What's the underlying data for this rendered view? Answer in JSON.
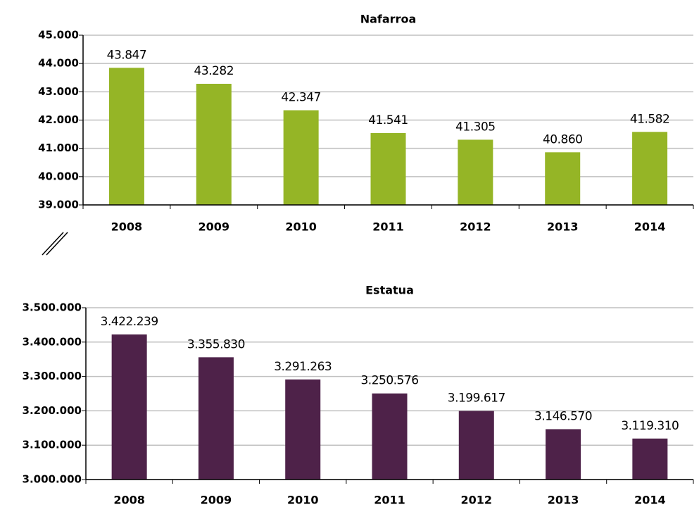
{
  "chart_data": [
    {
      "type": "bar",
      "title": "Nafarroa",
      "categories": [
        "2008",
        "2009",
        "2010",
        "2011",
        "2012",
        "2013",
        "2014"
      ],
      "values": [
        43847,
        43282,
        42347,
        41541,
        41305,
        40860,
        41582
      ],
      "value_labels": [
        "43.847",
        "43.282",
        "42.347",
        "41.541",
        "41.305",
        "40.860",
        "41.582"
      ],
      "color": "#95b526",
      "ylim": [
        39000,
        45000
      ],
      "yticks": [
        {
          "value": 39000,
          "label": "39.000"
        },
        {
          "value": 40000,
          "label": "40.000"
        },
        {
          "value": 41000,
          "label": "41.000"
        },
        {
          "value": 42000,
          "label": "42.000"
        },
        {
          "value": 43000,
          "label": "43.000"
        },
        {
          "value": 44000,
          "label": "44.000"
        },
        {
          "value": 45000,
          "label": "45.000"
        }
      ],
      "grid": true
    },
    {
      "type": "bar",
      "title": "Estatua",
      "categories": [
        "2008",
        "2009",
        "2010",
        "2011",
        "2012",
        "2013",
        "2014"
      ],
      "values": [
        3422239,
        3355830,
        3291263,
        3250576,
        3199617,
        3146570,
        3119310
      ],
      "value_labels": [
        "3.422.239",
        "3.355.830",
        "3.291.263",
        "3.250.576",
        "3.199.617",
        "3.146.570",
        "3.119.310"
      ],
      "color": "#4e2249",
      "ylim": [
        3000000,
        3500000
      ],
      "yticks": [
        {
          "value": 3000000,
          "label": "3.000.000"
        },
        {
          "value": 3100000,
          "label": "3.100.000"
        },
        {
          "value": 3200000,
          "label": "3.200.000"
        },
        {
          "value": 3300000,
          "label": "3.300.000"
        },
        {
          "value": 3400000,
          "label": "3.400.000"
        },
        {
          "value": 3500000,
          "label": "3.500.000"
        }
      ],
      "grid": true
    }
  ]
}
